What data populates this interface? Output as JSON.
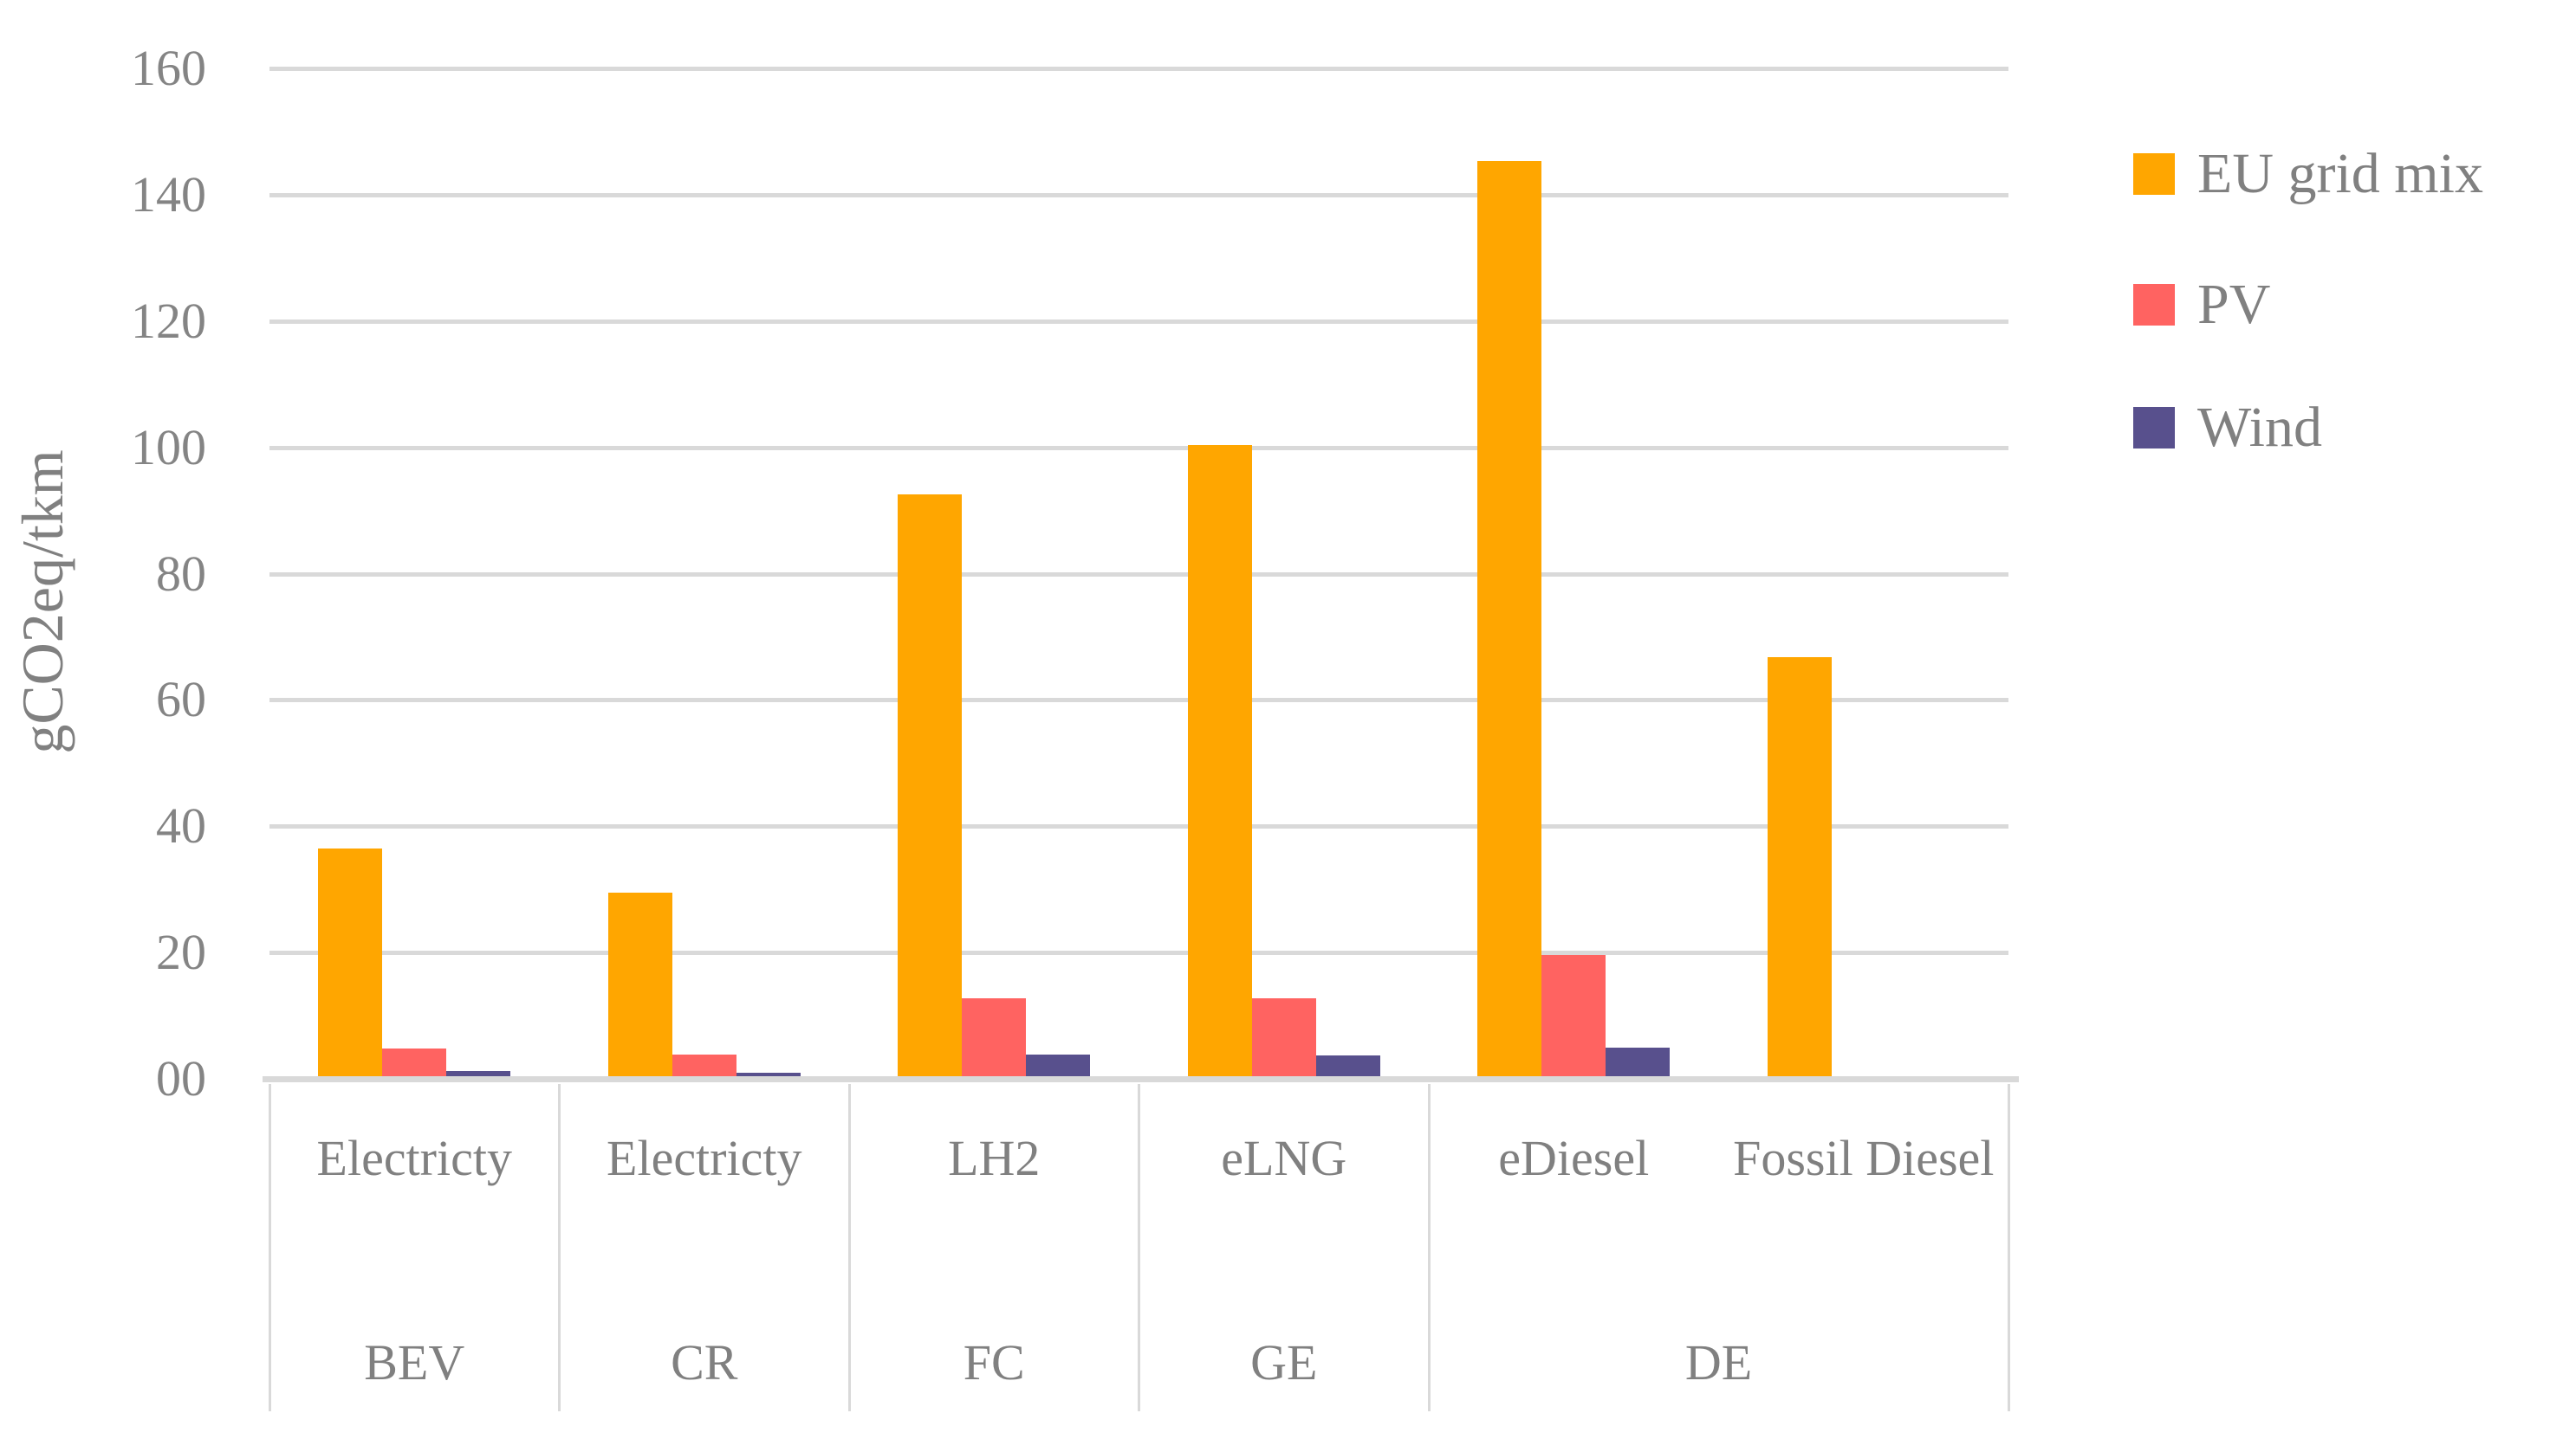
{
  "chart_data": {
    "type": "bar",
    "title": "",
    "xlabel": "",
    "ylabel": "gCO2eq/tkm",
    "ylim": [
      0,
      160
    ],
    "ytick_step": 20,
    "ytick_labels": [
      "00",
      "20",
      "40",
      "60",
      "80",
      "100",
      "120",
      "140",
      "160"
    ],
    "grid": true,
    "legend_position": "right",
    "categories": [
      {
        "fuel": "Electricty",
        "group": "BEV"
      },
      {
        "fuel": "Electricty",
        "group": "CR"
      },
      {
        "fuel": "LH2",
        "group": "FC"
      },
      {
        "fuel": "eLNG",
        "group": "GE"
      },
      {
        "fuel": "eDiesel",
        "group": "DE"
      },
      {
        "fuel": "Fossil Diesel",
        "group": "DE"
      }
    ],
    "group_spans": [
      {
        "label": "BEV",
        "span": 1
      },
      {
        "label": "CR",
        "span": 1
      },
      {
        "label": "FC",
        "span": 1
      },
      {
        "label": "GE",
        "span": 1
      },
      {
        "label": "DE",
        "span": 2
      }
    ],
    "series": [
      {
        "name": "EU grid mix",
        "color": "#FFA600",
        "values": [
          36.5,
          29.5,
          92.5,
          100.4,
          145.3,
          66.8
        ]
      },
      {
        "name": "PV",
        "color": "#FF6361",
        "values": [
          4.8,
          3.8,
          12.7,
          12.7,
          19.6,
          null
        ]
      },
      {
        "name": "Wind",
        "color": "#58508D",
        "values": [
          1.2,
          0.9,
          3.9,
          3.7,
          5.0,
          null
        ]
      }
    ]
  },
  "colors": {
    "gridline": "#d9d9d9",
    "axis_line": "#d9d9d9",
    "text": "#808080",
    "background": "#ffffff"
  }
}
